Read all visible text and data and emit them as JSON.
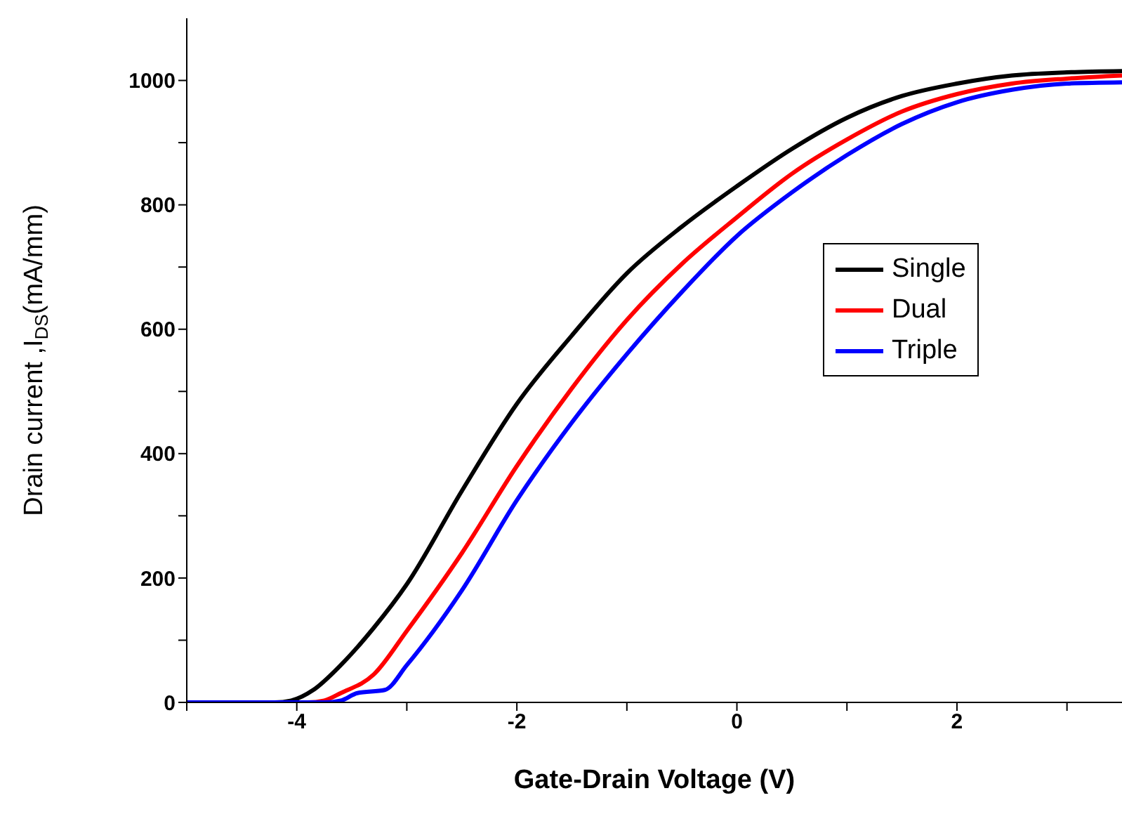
{
  "chart_data": {
    "type": "line",
    "xlabel": "Gate-Drain Voltage (V)",
    "ylabel": "Drain current ,I$_{DS}$(mA/mm)",
    "xlim": [
      -5,
      3.5
    ],
    "ylim": [
      0,
      1100
    ],
    "xticks": [
      {
        "value": -5,
        "label": null
      },
      -4,
      {
        "value": -3,
        "label": null
      },
      -2,
      {
        "value": -1,
        "label": null
      },
      0,
      {
        "value": 1,
        "label": null
      },
      2,
      {
        "value": 3,
        "label": null
      }
    ],
    "yticks": [
      0,
      {
        "value": 100,
        "label": null
      },
      200,
      {
        "value": 300,
        "label": null
      },
      400,
      {
        "value": 500,
        "label": null
      },
      600,
      {
        "value": 700,
        "label": null
      },
      800,
      {
        "value": 900,
        "label": null
      },
      1000
    ],
    "legend": "right",
    "marker": "none",
    "line_style": "solid",
    "series": [
      {
        "name": "Single",
        "color": "#000000",
        "x": [
          -5,
          -4.2,
          -4.05,
          -3.85,
          -3.6,
          -3.3,
          -3,
          -2.5,
          -2,
          -1.5,
          -1,
          -0.5,
          0,
          0.5,
          1,
          1.5,
          2,
          2.5,
          3,
          3.5
        ],
        "values": [
          0,
          0,
          3,
          20,
          60,
          120,
          190,
          340,
          480,
          590,
          690,
          765,
          830,
          890,
          940,
          975,
          995,
          1008,
          1013,
          1015
        ]
      },
      {
        "name": "Dual",
        "color": "#ff0000",
        "x": [
          -5,
          -3.9,
          -3.75,
          -3.6,
          -3.3,
          -3,
          -2.5,
          -2,
          -1.5,
          -1,
          -0.5,
          0,
          0.5,
          1,
          1.5,
          2,
          2.5,
          3,
          3.5
        ],
        "values": [
          0,
          0,
          3,
          15,
          45,
          115,
          240,
          380,
          505,
          615,
          705,
          780,
          850,
          905,
          950,
          978,
          995,
          1003,
          1008
        ]
      },
      {
        "name": "Triple",
        "color": "#0000ff",
        "x": [
          -5,
          -3.75,
          -3.6,
          -3.45,
          -3.2,
          -3,
          -2.5,
          -2,
          -1.5,
          -1,
          -0.5,
          0,
          0.5,
          1,
          1.5,
          2,
          2.5,
          3,
          3.5
        ],
        "values": [
          0,
          0,
          3,
          15,
          20,
          60,
          180,
          325,
          450,
          560,
          660,
          750,
          820,
          880,
          930,
          965,
          985,
          995,
          997
        ]
      }
    ]
  }
}
